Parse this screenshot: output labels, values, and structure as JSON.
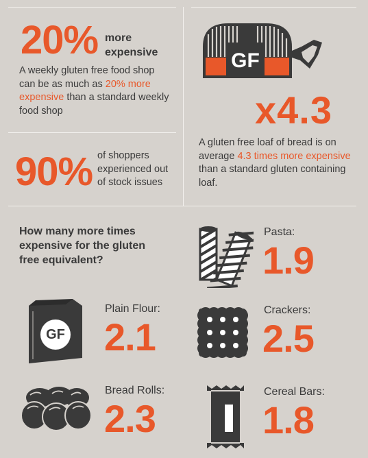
{
  "stat1": {
    "big": "20%",
    "side_line1": "more",
    "side_line2": "expensive",
    "desc_part1": "A weekly gluten free food shop can be as much as ",
    "desc_highlight": "20% more expensive",
    "desc_part2": " than a standard weekly food shop"
  },
  "stat2": {
    "big": "90%",
    "side_line1": "of shoppers",
    "side_line2": "experienced out",
    "side_line3": "of stock issues"
  },
  "stat3": {
    "badge": "GF",
    "big": "x4.3",
    "desc_part1": "A gluten free loaf of bread is on average ",
    "desc_highlight": "4.3 times more expensive",
    "desc_part2": " than a standard gluten containing loaf."
  },
  "question": "How many more times expensive for the gluten free equivalent?",
  "items": [
    {
      "label": "Pasta:",
      "value": "1.9",
      "icon": "pasta-icon"
    },
    {
      "label": "Plain Flour:",
      "value": "2.1",
      "icon": "flour-bag-icon",
      "badge": "GF"
    },
    {
      "label": "Crackers:",
      "value": "2.5",
      "icon": "cracker-icon"
    },
    {
      "label": "Bread Rolls:",
      "value": "2.3",
      "icon": "bread-rolls-icon"
    },
    {
      "label": "Cereal Bars:",
      "value": "1.8",
      "icon": "cereal-bar-icon"
    }
  ],
  "colors": {
    "accent": "#e8582a",
    "dark": "#3a3a3a",
    "background": "#d6d2cd"
  }
}
